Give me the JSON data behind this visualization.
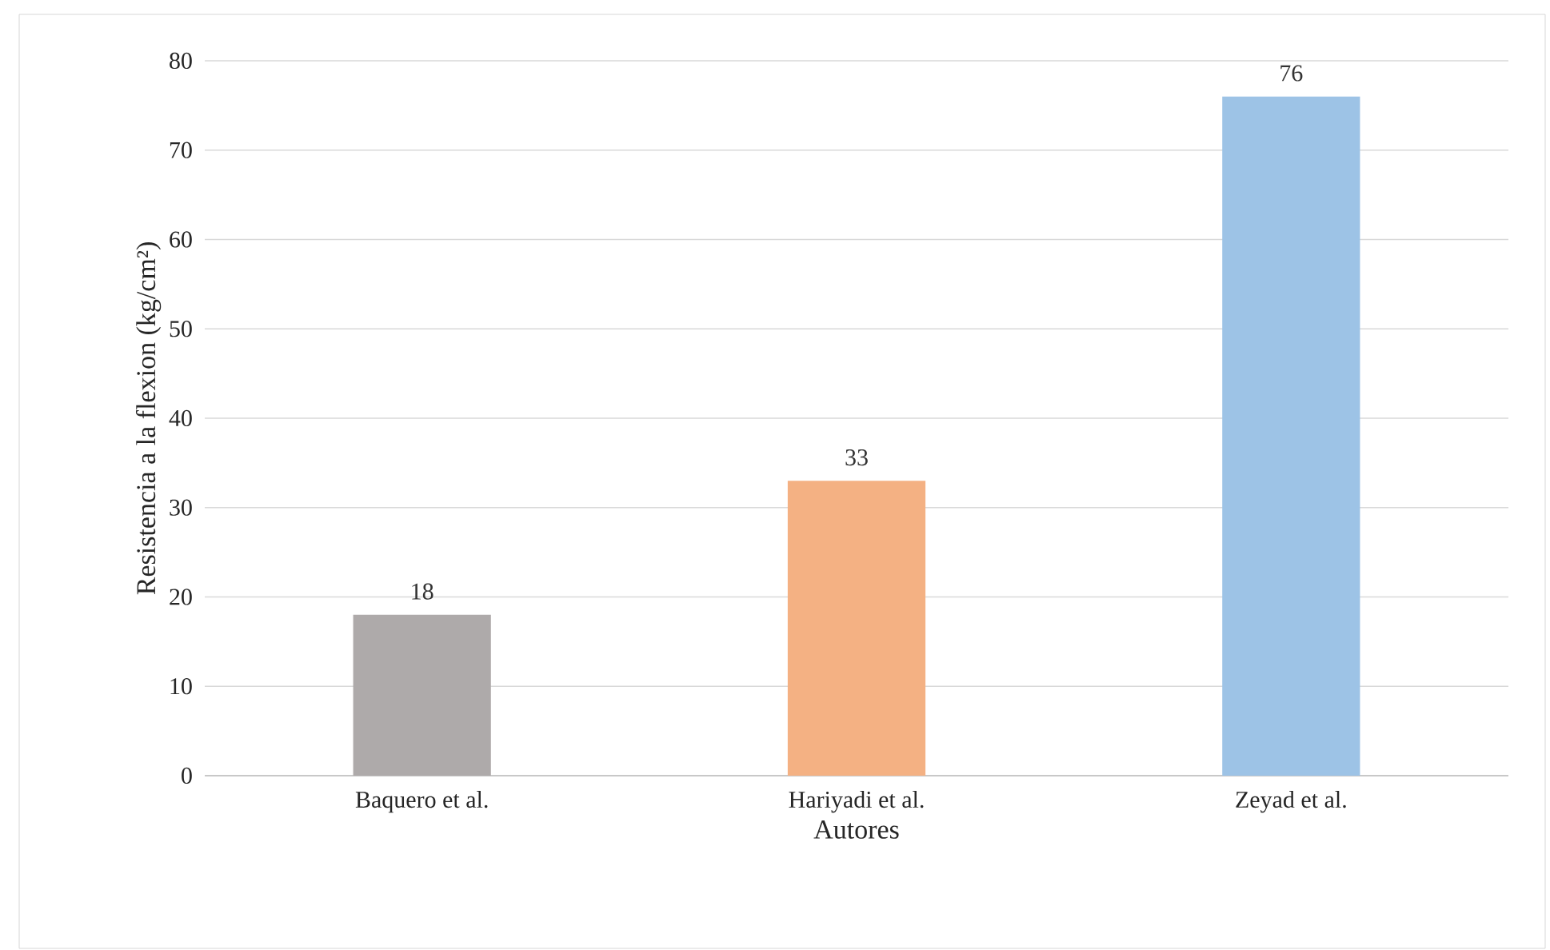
{
  "chart_data": {
    "type": "bar",
    "xlabel": "Autores",
    "ylabel": "Resistencia a la flexion (kg/cm²)",
    "categories": [
      "Baquero et al.",
      "Hariyadi et al.",
      "Zeyad et al."
    ],
    "values": [
      18,
      33,
      76
    ],
    "colors": [
      "#aeaaaa",
      "#f4b183",
      "#9dc3e6"
    ],
    "ylim": [
      0,
      80
    ],
    "yticks": [
      0,
      10,
      20,
      30,
      40,
      50,
      60,
      70,
      80
    ],
    "grid": "y",
    "data_labels": true
  }
}
